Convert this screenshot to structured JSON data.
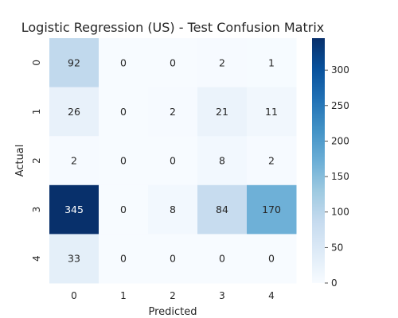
{
  "chart_data": {
    "type": "heatmap",
    "title": "Logistic Regression (US) - Test Confusion Matrix",
    "xlabel": "Predicted",
    "ylabel": "Actual",
    "x_categories": [
      "0",
      "1",
      "2",
      "3",
      "4"
    ],
    "y_categories": [
      "0",
      "1",
      "2",
      "3",
      "4"
    ],
    "values": [
      [
        92,
        0,
        0,
        2,
        1
      ],
      [
        26,
        0,
        2,
        21,
        11
      ],
      [
        2,
        0,
        0,
        8,
        2
      ],
      [
        345,
        0,
        8,
        84,
        170
      ],
      [
        33,
        0,
        0,
        0,
        0
      ]
    ],
    "colormap": "Blues",
    "colorbar": {
      "vmin": 0,
      "vmax": 345,
      "ticks": [
        "0",
        "50",
        "100",
        "150",
        "200",
        "250",
        "300"
      ]
    },
    "grid": false
  }
}
